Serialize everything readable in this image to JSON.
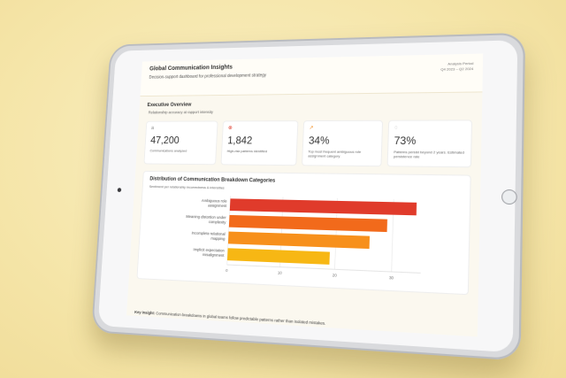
{
  "header": {
    "title": "Global Communication Insights",
    "subtitle": "Decision-support dashboard for professional development strategy",
    "right_line1": "Analysis Period",
    "right_line2": "Q4 2023 – Q2 2024"
  },
  "overview": {
    "heading": "Executive Overview",
    "subheading": "Relationship accuracy at rapport intensity"
  },
  "kpis": [
    {
      "icon": "a",
      "value": "47,200",
      "label": "Communications analyzed"
    },
    {
      "icon": "⊗",
      "value": "1,842",
      "label": "High-risk patterns identified"
    },
    {
      "icon": "↗",
      "value": "34%",
      "label": "Top most frequent ambiguous role assignment category"
    },
    {
      "icon": "◌",
      "value": "73%",
      "label": "Patterns persist beyond 2 years. Estimated persistence rate"
    }
  ],
  "chart": {
    "title": "Distribution of Communication Breakdown Categories",
    "subtitle": "Sentiment per relationship incorrectness & intensities"
  },
  "chart_data": {
    "type": "bar",
    "orientation": "horizontal",
    "categories": [
      "Ambiguous role assignment",
      "Meaning distortion under complexity",
      "Incomplete relational mapping",
      "Implicit expectation misalignment"
    ],
    "category_lines": [
      [
        "Ambiguous role",
        "assignment"
      ],
      [
        "Meaning distortion under",
        "complexity"
      ],
      [
        "Incomplete relational",
        "mapping"
      ],
      [
        "Implicit expectation",
        "misalignment"
      ]
    ],
    "values": [
      34,
      29,
      26,
      19
    ],
    "colors": [
      "#e03b2b",
      "#f26a1b",
      "#f7901c",
      "#f7b714"
    ],
    "xticks": [
      "0",
      "10",
      "20",
      "30"
    ],
    "xlim": [
      0,
      35
    ],
    "grid": true
  },
  "insight": {
    "label": "Key Insight:",
    "text": "Communication breakdowns in global teams follow predictable patterns rather than isolated mistakes."
  }
}
